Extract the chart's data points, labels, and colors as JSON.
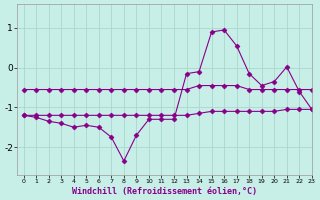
{
  "xlabel": "Windchill (Refroidissement éolien,°C)",
  "background_color": "#c8eee8",
  "grid_color": "#aad8cc",
  "line_color": "#880088",
  "xlim": [
    -0.5,
    23
  ],
  "ylim": [
    -2.7,
    1.6
  ],
  "yticks": [
    -2,
    -1,
    0,
    1
  ],
  "xticks": [
    0,
    1,
    2,
    3,
    4,
    5,
    6,
    7,
    8,
    9,
    10,
    11,
    12,
    13,
    14,
    15,
    16,
    17,
    18,
    19,
    20,
    21,
    22,
    23
  ],
  "hours": [
    0,
    1,
    2,
    3,
    4,
    5,
    6,
    7,
    8,
    9,
    10,
    11,
    12,
    13,
    14,
    15,
    16,
    17,
    18,
    19,
    20,
    21,
    22,
    23
  ],
  "line1": [
    -1.2,
    -1.25,
    -1.35,
    -1.4,
    -1.5,
    -1.45,
    -1.5,
    -1.75,
    -2.35,
    -1.7,
    -1.3,
    -1.3,
    -1.3,
    -0.15,
    -0.1,
    0.9,
    0.95,
    0.55,
    -0.15,
    -0.45,
    -0.35,
    0.02,
    -0.6,
    -1.05
  ],
  "line2": [
    -0.55,
    -0.55,
    -0.55,
    -0.55,
    -0.55,
    -0.55,
    -0.55,
    -0.55,
    -0.55,
    -0.55,
    -0.55,
    -0.55,
    -0.55,
    -0.55,
    -0.45,
    -0.45,
    -0.45,
    -0.45,
    -0.55,
    -0.55,
    -0.55,
    -0.55,
    -0.55,
    -0.55
  ],
  "line3": [
    -1.2,
    -1.2,
    -1.2,
    -1.2,
    -1.2,
    -1.2,
    -1.2,
    -1.2,
    -1.2,
    -1.2,
    -1.2,
    -1.2,
    -1.2,
    -1.2,
    -1.15,
    -1.1,
    -1.1,
    -1.1,
    -1.1,
    -1.1,
    -1.1,
    -1.05,
    -1.05,
    -1.05
  ]
}
